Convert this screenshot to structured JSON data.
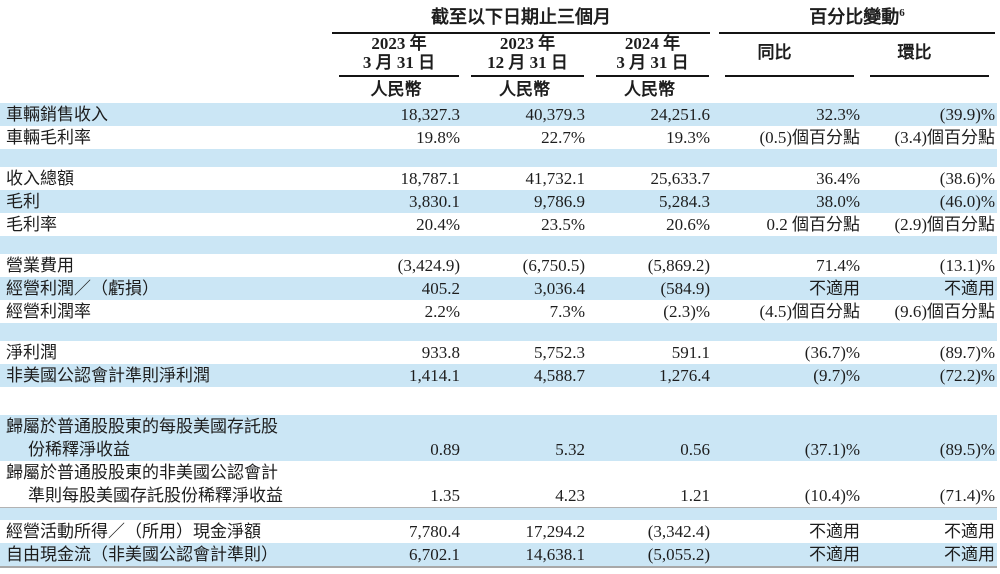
{
  "colors": {
    "stripe_blue": "#cbe6f5",
    "header_rule": "#141414",
    "gray_rule": "#a8a8a8",
    "text": "#1d1d1d"
  },
  "table": {
    "group_period": {
      "label": "截至以下日期止三個月"
    },
    "group_change": {
      "label": "百分比變動",
      "sup": "6"
    },
    "date_columns": [
      {
        "year_line": "2023 年",
        "date_line": "3 月 31 日",
        "currency": "人民幣"
      },
      {
        "year_line": "2023 年",
        "date_line": "12 月 31 日",
        "currency": "人民幣"
      },
      {
        "year_line": "2024 年",
        "date_line": "3 月 31 日",
        "currency": "人民幣"
      }
    ],
    "change_columns": [
      {
        "label": "同比"
      },
      {
        "label": "環比"
      }
    ],
    "rows": [
      {
        "type": "data",
        "bg": "blue",
        "label": "車輛銷售收入",
        "values": [
          "18,327.3",
          "40,379.3",
          "24,251.6",
          "32.3%",
          "(39.9)%"
        ]
      },
      {
        "type": "data",
        "bg": "white",
        "label": "車輛毛利率",
        "values": [
          "19.8%",
          "22.7%",
          "19.3%",
          "(0.5)個百分點",
          "(3.4)個百分點"
        ]
      },
      {
        "type": "spacer",
        "bg": "blue",
        "size": "m"
      },
      {
        "type": "data",
        "bg": "white",
        "label": "收入總額",
        "values": [
          "18,787.1",
          "41,732.1",
          "25,633.7",
          "36.4%",
          "(38.6)%"
        ]
      },
      {
        "type": "data",
        "bg": "blue",
        "label": "毛利",
        "values": [
          "3,830.1",
          "9,786.9",
          "5,284.3",
          "38.0%",
          "(46.0)%"
        ]
      },
      {
        "type": "data",
        "bg": "white",
        "label": "毛利率",
        "values": [
          "20.4%",
          "23.5%",
          "20.6%",
          "0.2 個百分點",
          "(2.9)個百分點"
        ]
      },
      {
        "type": "spacer",
        "bg": "blue",
        "size": "m"
      },
      {
        "type": "data",
        "bg": "white",
        "label": "營業費用",
        "values": [
          "(3,424.9)",
          "(6,750.5)",
          "(5,869.2)",
          "71.4%",
          "(13.1)%"
        ]
      },
      {
        "type": "data",
        "bg": "blue",
        "label": "經營利潤／（虧損）",
        "values": [
          "405.2",
          "3,036.4",
          "(584.9)",
          "不適用",
          "不適用"
        ]
      },
      {
        "type": "data",
        "bg": "white",
        "label": "經營利潤率",
        "values": [
          "2.2%",
          "7.3%",
          "(2.3)%",
          "(4.5)個百分點",
          "(9.6)個百分點"
        ]
      },
      {
        "type": "spacer",
        "bg": "blue",
        "size": "m"
      },
      {
        "type": "data",
        "bg": "white",
        "label": "淨利潤",
        "values": [
          "933.8",
          "5,752.3",
          "591.1",
          "(36.7)%",
          "(89.7)%"
        ]
      },
      {
        "type": "data",
        "bg": "blue",
        "label": "非美國公認會計準則淨利潤",
        "values": [
          "1,414.1",
          "4,588.7",
          "1,276.4",
          "(9.7)%",
          "(72.2)%"
        ]
      },
      {
        "type": "spacer",
        "bg": "white",
        "size": "l"
      },
      {
        "type": "data",
        "bg": "blue",
        "label": "歸屬於普通股股東的每股美國存託股",
        "label2": "份稀釋淨收益",
        "values": [
          "0.89",
          "5.32",
          "0.56",
          "(37.1)%",
          "(89.5)%"
        ]
      },
      {
        "type": "data",
        "bg": "white",
        "label": "歸屬於普通股股東的非美國公認會計",
        "label2": "準則每股美國存託股份稀釋淨收益",
        "values": [
          "1.35",
          "4.23",
          "1.21",
          "(10.4)%",
          "(71.4)%"
        ]
      },
      {
        "type": "spacer",
        "bg": "blue",
        "size": "s",
        "rule_top": true
      },
      {
        "type": "data",
        "bg": "white",
        "label": "經營活動所得／（所用）現金淨額",
        "values": [
          "7,780.4",
          "17,294.2",
          "(3,342.4)",
          "不適用",
          "不適用"
        ]
      },
      {
        "type": "data",
        "bg": "blue",
        "label": "自由現金流（非美國公認會計準則）",
        "values": [
          "6,702.1",
          "14,638.1",
          "(5,055.2)",
          "不適用",
          "不適用"
        ]
      },
      {
        "type": "bottom_rule"
      }
    ]
  }
}
